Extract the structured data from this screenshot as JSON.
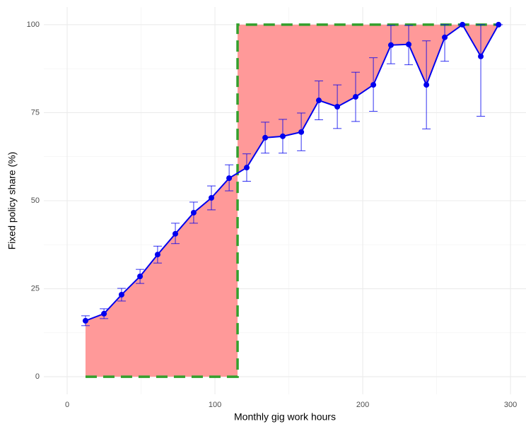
{
  "chart_data": {
    "type": "line",
    "x_label": "Monthly gig work hours",
    "y_label": "Fixed policy share (%)",
    "xlim": [
      -15.8,
      310.5
    ],
    "xticks": [
      0,
      100,
      200,
      300
    ],
    "ylim": [
      -5,
      105
    ],
    "yticks": [
      0,
      25,
      50,
      75,
      100
    ],
    "grid": true,
    "fill_color": "#ff9999",
    "series": [
      {
        "color": "#0000ee",
        "x": [
          12.4,
          24.9,
          36.8,
          49.3,
          61.2,
          73.2,
          85.6,
          97.6,
          109.6,
          121.5,
          134,
          145.9,
          158.4,
          170.3,
          182.8,
          195.2,
          207.2,
          219.1,
          231.1,
          243.1,
          255.5,
          267.5,
          279.9,
          291.9
        ],
        "values": [
          15.9,
          17.9,
          23.3,
          28.5,
          34.7,
          40.6,
          46.6,
          50.8,
          56.4,
          59.4,
          67.9,
          68.3,
          69.5,
          78.5,
          76.7,
          79.5,
          82.9,
          94.2,
          94.4,
          82.9,
          96.4,
          100,
          91,
          100
        ],
        "lower": [
          14.5,
          16.5,
          21.5,
          26.5,
          32.3,
          37.8,
          43.6,
          47.4,
          52.8,
          55.5,
          63.5,
          63.5,
          64.2,
          73,
          70.5,
          72.5,
          75.4,
          88.9,
          88.6,
          70.4,
          89.6,
          100,
          74,
          100
        ],
        "upper": [
          17.3,
          19.3,
          25.1,
          30.5,
          37.1,
          43.6,
          49.6,
          54.2,
          60.2,
          63.3,
          72.3,
          73.1,
          74.9,
          84,
          82.9,
          86.5,
          90.6,
          99.8,
          99.8,
          95.4,
          100,
          100,
          100,
          100
        ]
      },
      {
        "color": "#33a02c",
        "dashed": true,
        "x": [
          12.4,
          115.3,
          115.3,
          291.9
        ],
        "values": [
          0,
          0,
          100,
          100
        ]
      }
    ]
  }
}
